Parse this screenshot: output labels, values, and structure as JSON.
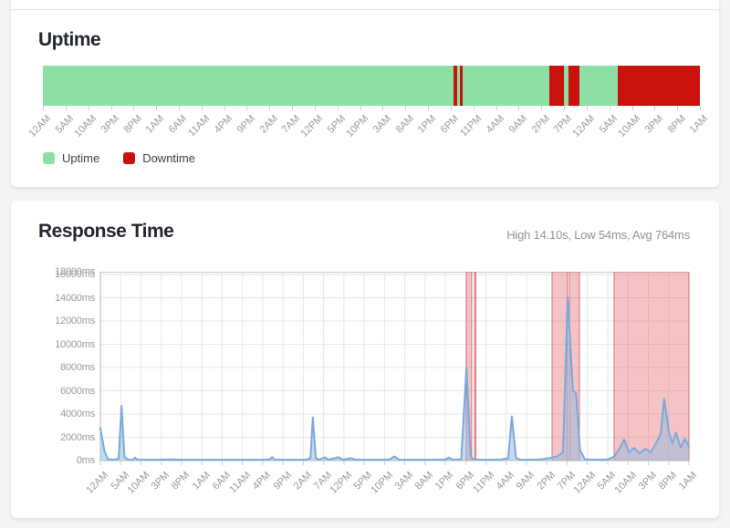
{
  "theme": {
    "page_bg": "#f4f5f7",
    "card_bg": "#ffffff",
    "title_color": "#23272f",
    "muted_text_color": "#8d939c",
    "axis_label_color": "#97999b",
    "grid_color": "#e6e7e9",
    "axis_line_color": "#b3b5b9",
    "uptime_green": "#8ce0a5",
    "downtime_red": "#c9120c",
    "line_blue": "#79a9db",
    "area_fill": "rgba(148,186,224,0.5)",
    "band_fill": "rgba(222,73,82,0.33)",
    "band_edge": "rgba(196,32,40,0.55)"
  },
  "uptime_section": {
    "title": "Uptime",
    "legend": [
      {
        "label": "Uptime",
        "color": "#8ce0a5"
      },
      {
        "label": "Downtime",
        "color": "#c9120c"
      }
    ]
  },
  "response_section": {
    "title": "Response Time",
    "summary": "High 14.10s, Low 54ms, Avg 764ms"
  },
  "chart_data": [
    {
      "id": "uptime-timeline",
      "type": "bar",
      "title": "Uptime",
      "legend": [
        "Uptime",
        "Downtime"
      ],
      "x_tick_labels": [
        "12AM",
        "5AM",
        "10AM",
        "3PM",
        "8PM",
        "1AM",
        "6AM",
        "11AM",
        "4PM",
        "9PM",
        "2AM",
        "7AM",
        "12PM",
        "5PM",
        "10PM",
        "3AM",
        "8AM",
        "1PM",
        "6PM",
        "11PM",
        "4AM",
        "9AM",
        "2PM",
        "7PM",
        "12AM",
        "5AM",
        "10AM",
        "3PM",
        "8PM",
        "1AM"
      ],
      "uptime_color": "#8ce0a5",
      "downtime_color": "#c9120c",
      "downtime_segments_pct": [
        [
          62.5,
          63.06
        ],
        [
          63.47,
          63.89
        ],
        [
          77.08,
          79.31
        ],
        [
          80.0,
          81.67
        ],
        [
          87.5,
          100.0
        ]
      ]
    },
    {
      "id": "response-time",
      "type": "area",
      "title": "Response Time",
      "summary": "High 14.10s, Low 54ms, Avg 764ms",
      "high_ms": 14100,
      "low_ms": 54,
      "avg_ms": 764,
      "ylim_ms": [
        0,
        16235
      ],
      "y_ticks": [
        {
          "ms": 0,
          "label": "0ms"
        },
        {
          "ms": 2000,
          "label": "2000ms"
        },
        {
          "ms": 4000,
          "label": "4000ms"
        },
        {
          "ms": 6000,
          "label": "6000ms"
        },
        {
          "ms": 8000,
          "label": "8000ms"
        },
        {
          "ms": 10000,
          "label": "10000ms"
        },
        {
          "ms": 12000,
          "label": "12000ms"
        },
        {
          "ms": 14000,
          "label": "14000ms"
        },
        {
          "ms": 16000,
          "label": "16000ms"
        },
        {
          "ms": 18000,
          "label": "18000ms"
        }
      ],
      "x_tick_labels": [
        "12AM",
        "5AM",
        "10AM",
        "3PM",
        "8PM",
        "1AM",
        "6AM",
        "11AM",
        "4PM",
        "9PM",
        "2AM",
        "7AM",
        "12PM",
        "5PM",
        "10PM",
        "3AM",
        "8AM",
        "1PM",
        "6PM",
        "11PM",
        "4AM",
        "9AM",
        "2PM",
        "7PM",
        "12AM",
        "5AM",
        "10AM",
        "3PM",
        "8PM",
        "1AM"
      ],
      "downtime_bands_pct": [
        [
          62.17,
          63.1
        ],
        [
          63.57,
          63.8
        ],
        [
          76.74,
          79.38
        ],
        [
          79.69,
          81.4
        ],
        [
          87.29,
          100.0
        ]
      ],
      "points_pct_ms": [
        [
          0,
          2800
        ],
        [
          0.7,
          800
        ],
        [
          1.3,
          110
        ],
        [
          2.3,
          70
        ],
        [
          3.1,
          150
        ],
        [
          3.6,
          4700
        ],
        [
          4.1,
          300
        ],
        [
          4.7,
          70
        ],
        [
          5.6,
          70
        ],
        [
          5.9,
          250
        ],
        [
          6.3,
          70
        ],
        [
          8,
          70
        ],
        [
          10,
          70
        ],
        [
          12,
          100
        ],
        [
          14,
          70
        ],
        [
          16,
          70
        ],
        [
          18,
          70
        ],
        [
          20,
          70
        ],
        [
          22,
          70
        ],
        [
          24,
          70
        ],
        [
          26,
          70
        ],
        [
          28,
          70
        ],
        [
          28.8,
          100
        ],
        [
          29.2,
          300
        ],
        [
          29.6,
          70
        ],
        [
          31,
          70
        ],
        [
          33,
          70
        ],
        [
          35,
          70
        ],
        [
          35.7,
          200
        ],
        [
          36.1,
          3700
        ],
        [
          36.6,
          200
        ],
        [
          37.2,
          70
        ],
        [
          38.1,
          280
        ],
        [
          38.8,
          70
        ],
        [
          40.5,
          280
        ],
        [
          41.2,
          70
        ],
        [
          42.6,
          200
        ],
        [
          43.3,
          70
        ],
        [
          45,
          70
        ],
        [
          47,
          70
        ],
        [
          49,
          70
        ],
        [
          50.0,
          350
        ],
        [
          50.7,
          70
        ],
        [
          52.5,
          70
        ],
        [
          54.5,
          70
        ],
        [
          56.5,
          70
        ],
        [
          58.5,
          70
        ],
        [
          59.2,
          250
        ],
        [
          59.9,
          70
        ],
        [
          61.3,
          100
        ],
        [
          62.2,
          8000
        ],
        [
          62.9,
          400
        ],
        [
          63.4,
          100
        ],
        [
          64.5,
          70
        ],
        [
          66,
          70
        ],
        [
          68,
          70
        ],
        [
          69.3,
          200
        ],
        [
          69.9,
          3800
        ],
        [
          70.6,
          250
        ],
        [
          71.3,
          70
        ],
        [
          73,
          70
        ],
        [
          74.5,
          90
        ],
        [
          75.6,
          150
        ],
        [
          76.7,
          250
        ],
        [
          77.6,
          350
        ],
        [
          78.6,
          700
        ],
        [
          79.4,
          14000
        ],
        [
          80.3,
          6000
        ],
        [
          80.8,
          5800
        ],
        [
          81.5,
          900
        ],
        [
          82.3,
          110
        ],
        [
          83.5,
          70
        ],
        [
          85,
          70
        ],
        [
          86.3,
          100
        ],
        [
          87.3,
          350
        ],
        [
          88.2,
          1000
        ],
        [
          89.0,
          1800
        ],
        [
          89.8,
          700
        ],
        [
          90.7,
          1100
        ],
        [
          91.6,
          600
        ],
        [
          92.6,
          1000
        ],
        [
          93.5,
          700
        ],
        [
          94.4,
          1500
        ],
        [
          95.2,
          2300
        ],
        [
          95.8,
          5300
        ],
        [
          96.6,
          2400
        ],
        [
          97.2,
          1500
        ],
        [
          97.8,
          2400
        ],
        [
          98.6,
          1100
        ],
        [
          99.3,
          1900
        ],
        [
          100,
          1200
        ]
      ]
    }
  ]
}
